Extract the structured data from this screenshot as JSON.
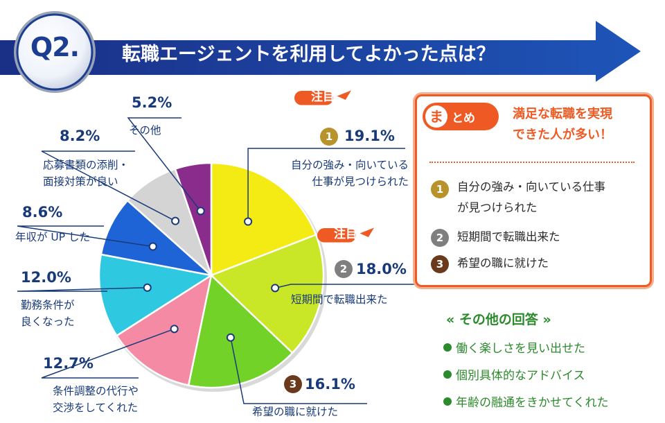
{
  "header": {
    "q_label": "Q2.",
    "title": "転職エージェントを利用してよかった点は？"
  },
  "chart_data": {
    "type": "pie",
    "unit": "%",
    "slices": [
      {
        "label": "自分の強み・向いている仕事が見つけられた",
        "value": 19.1,
        "color": "#f4ea14",
        "rank": "1",
        "attention": "注目"
      },
      {
        "label": "短期間で転職出来た",
        "value": 18.0,
        "color": "#c9e627",
        "rank": "2",
        "attention": "注目"
      },
      {
        "label": "希望の職に就けた",
        "value": 16.1,
        "color": "#72d228",
        "rank": "3"
      },
      {
        "label": "条件調整の代行や交渉をしてくれた",
        "value": 12.7,
        "color": "#f58aa5"
      },
      {
        "label": "勤務条件が良くなった",
        "value": 12.0,
        "color": "#2ec8e0"
      },
      {
        "label": "年収が UP した",
        "value": 8.6,
        "color": "#1e64d6"
      },
      {
        "label": "応募書類の添削・面接対策が良い",
        "value": 8.2,
        "color": "#d4d4d4"
      },
      {
        "label": "その他",
        "value": 5.2,
        "color": "#8a2c8c"
      }
    ],
    "rank_colors": {
      "1": "#b8922a",
      "2": "#7f7f7f",
      "3": "#6b3a1c"
    }
  },
  "labels": {
    "s0": {
      "pct": "19.1%",
      "line1": "自分の強み・向いている",
      "line2": "仕事が見つけられた",
      "rank": "1",
      "attention": "注目"
    },
    "s1": {
      "pct": "18.0%",
      "line1": "短期間で転職出来た",
      "rank": "2",
      "attention": "注目"
    },
    "s2": {
      "pct": "16.1%",
      "line1": "希望の職に就けた",
      "rank": "3"
    },
    "s3": {
      "pct": "12.7%",
      "line1": "条件調整の代行や",
      "line2": "交渉をしてくれた"
    },
    "s4": {
      "pct": "12.0%",
      "line1": "勤務条件が",
      "line2": "良くなった"
    },
    "s5": {
      "pct": "8.6%",
      "line1": "年収が UP した"
    },
    "s6": {
      "pct": "8.2%",
      "line1": "応募書類の添削・",
      "line2": "面接対策が良い"
    },
    "s7": {
      "pct": "5.2%",
      "line1": "その他"
    }
  },
  "summary": {
    "tag_char": "ま",
    "tag_rest": "とめ",
    "headline1": "満足な転職を実現",
    "headline2": "できた人が多い！",
    "items": [
      {
        "rank": "1",
        "line1": "自分の強み・向いている仕事",
        "line2": "が見つけられた"
      },
      {
        "rank": "2",
        "line1": "短期間で転職出来た"
      },
      {
        "rank": "3",
        "line1": "希望の職に就けた"
      }
    ]
  },
  "others": {
    "title": "« その他の回答 »",
    "items": [
      "働く楽しさを見い出せた",
      "個別具体的なアドバイス",
      "年齢の融通をきかせてくれた"
    ]
  },
  "colors": {
    "navy": "#1b3d92",
    "accent": "#ef5a24",
    "label_text": "#183a7a",
    "other_green": "#2b8a2b"
  }
}
